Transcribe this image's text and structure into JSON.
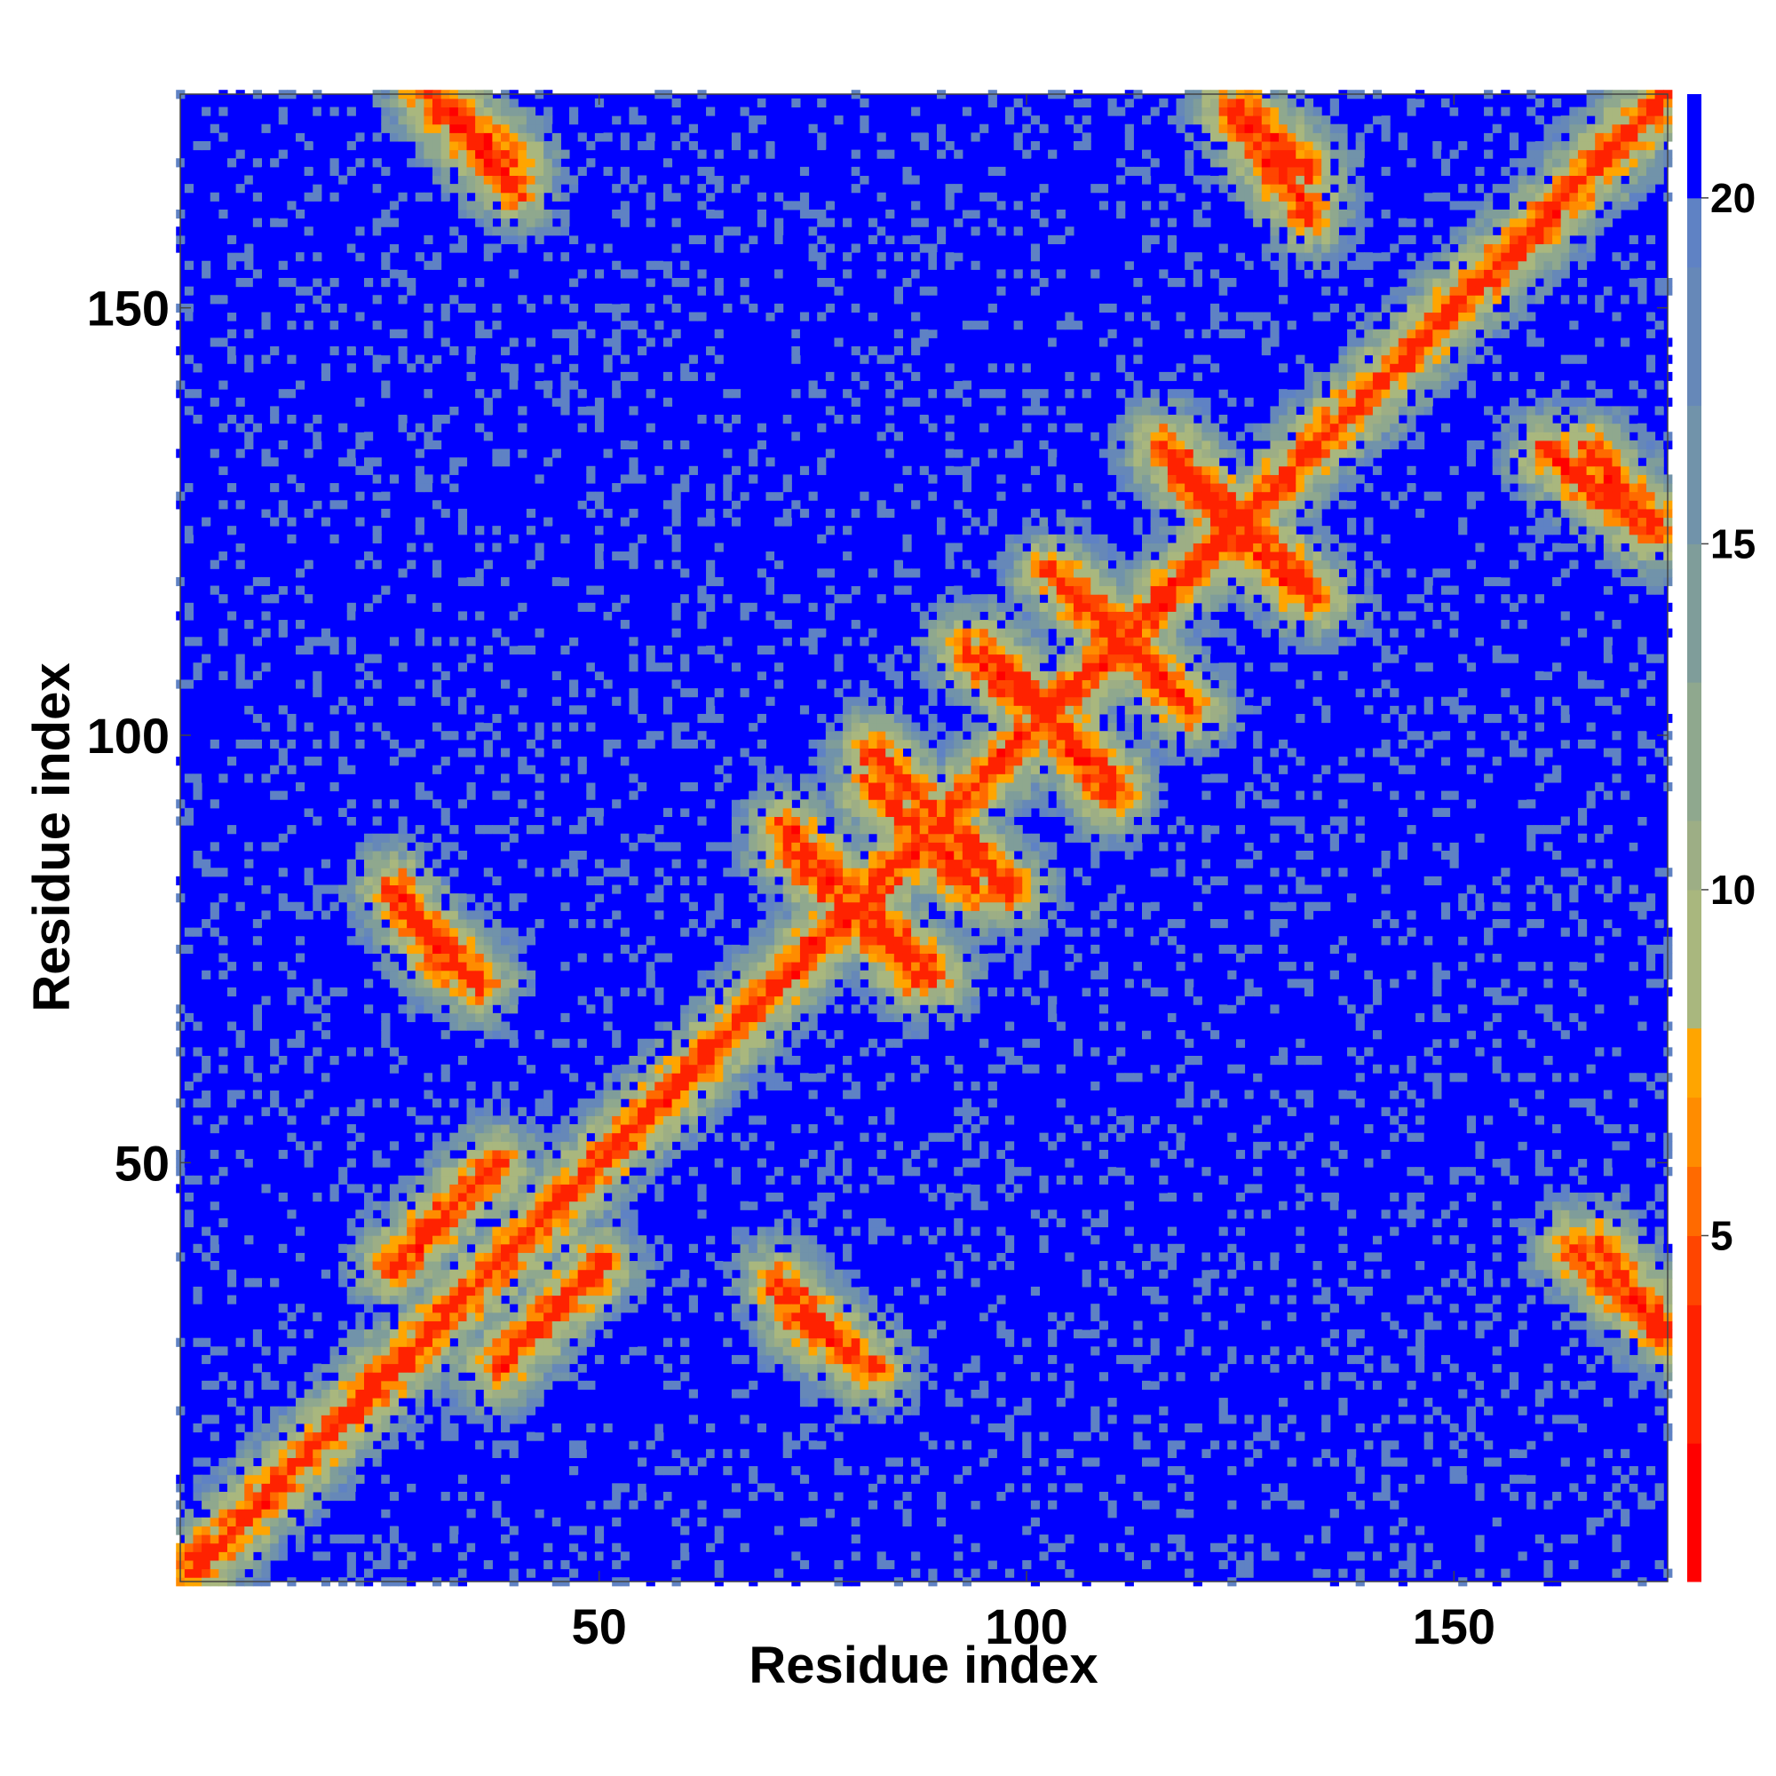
{
  "chart_data": {
    "type": "heatmap",
    "title": "",
    "xlabel": "Residue index",
    "ylabel": "Residue index",
    "xlim": [
      1,
      175
    ],
    "ylim": [
      1,
      175
    ],
    "x_ticks": [
      50,
      100,
      150
    ],
    "y_ticks": [
      50,
      100,
      150
    ],
    "n_residues": 175,
    "grid": false,
    "colorbar": {
      "position": "right",
      "range": [
        0,
        21.5
      ],
      "ticks": [
        5,
        10,
        15,
        20
      ],
      "levels": [
        {
          "max": 2,
          "color": "#ff0000"
        },
        {
          "max": 4,
          "color": "#ff2200"
        },
        {
          "max": 5,
          "color": "#ff4500"
        },
        {
          "max": 6,
          "color": "#ff6a00"
        },
        {
          "max": 7,
          "color": "#ff8c00"
        },
        {
          "max": 8,
          "color": "#ffa500"
        },
        {
          "max": 10,
          "color": "#a9b77e"
        },
        {
          "max": 11,
          "color": "#9dae85"
        },
        {
          "max": 13,
          "color": "#8fa88e"
        },
        {
          "max": 15,
          "color": "#7f9d9a"
        },
        {
          "max": 17,
          "color": "#7193aa"
        },
        {
          "max": 19,
          "color": "#6688b8"
        },
        {
          "max": 20,
          "color": "#5f82c4"
        },
        {
          "max": 21.5,
          "color": "#0000ff"
        }
      ]
    },
    "contact_features": [
      {
        "type": "parallel",
        "i": [
          2,
          175
        ],
        "j": [
          2,
          175
        ],
        "description": "main diagonal"
      },
      {
        "type": "parallel",
        "i": [
          38,
          50
        ],
        "j": [
          26,
          38
        ],
        "description": "band below diagonal"
      },
      {
        "type": "antiparallel",
        "i": [
          71,
          79
        ],
        "j": [
          36,
          28
        ]
      },
      {
        "type": "antiparallel",
        "i": [
          26,
          32
        ],
        "j": [
          82,
          73
        ]
      },
      {
        "type": "antiparallel",
        "i": [
          72,
          79
        ],
        "j": [
          89,
          82
        ]
      },
      {
        "type": "antiparallel",
        "i": [
          80,
          87
        ],
        "j": [
          79,
          72
        ]
      },
      {
        "type": "antiparallel",
        "i": [
          82,
          89
        ],
        "j": [
          98,
          91
        ]
      },
      {
        "type": "antiparallel",
        "i": [
          85,
          94
        ],
        "j": [
          91,
          82
        ]
      },
      {
        "type": "antiparallel",
        "i": [
          93,
          100
        ],
        "j": [
          110,
          104
        ]
      },
      {
        "type": "antiparallel",
        "i": [
          103,
          110
        ],
        "j": [
          119,
          113
        ]
      },
      {
        "type": "antiparallel",
        "i": [
          102,
          110
        ],
        "j": [
          103,
          95
        ]
      },
      {
        "type": "antiparallel",
        "i": [
          112,
          118
        ],
        "j": [
          110,
          104
        ]
      },
      {
        "type": "antiparallel",
        "i": [
          116,
          124
        ],
        "j": [
          134,
          126
        ]
      },
      {
        "type": "antiparallel",
        "i": [
          124,
          132
        ],
        "j": [
          124,
          117
        ]
      },
      {
        "type": "antiparallel",
        "i": [
          125,
          133
        ],
        "j": [
          173,
          166
        ]
      },
      {
        "type": "antiparallel",
        "i": [
          161,
          173
        ],
        "j": [
          133,
          124
        ]
      },
      {
        "type": "antiparallel",
        "i": [
          30,
          40
        ],
        "j": [
          175,
          167
        ]
      },
      {
        "type": "antiparallel",
        "i": [
          164,
          175
        ],
        "j": [
          40,
          30
        ]
      }
    ]
  }
}
